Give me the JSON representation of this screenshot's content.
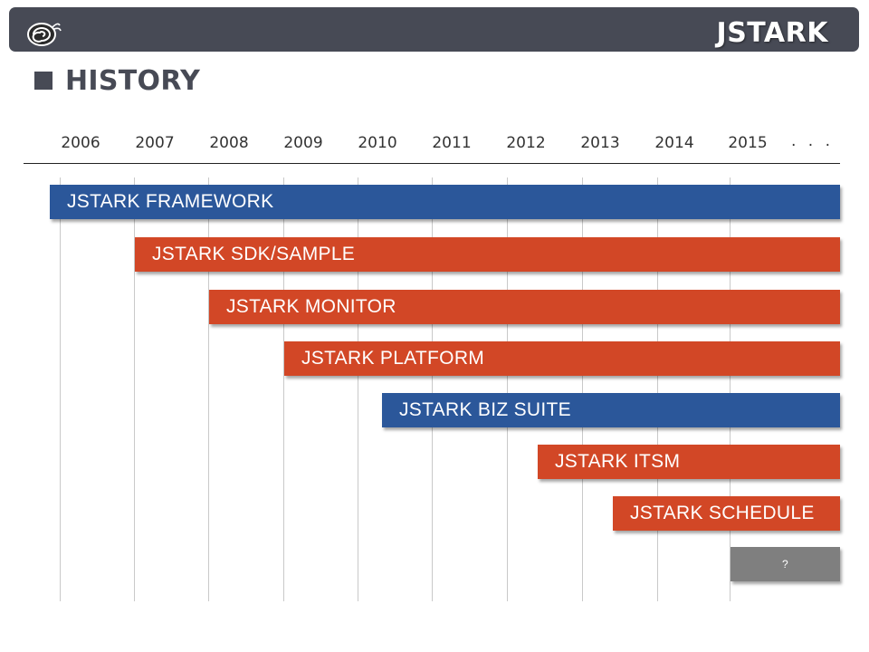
{
  "header": {
    "brand": "JSTARK",
    "logo_icon": "snail-icon"
  },
  "section": {
    "title": "HISTORY"
  },
  "timeline": {
    "years": [
      "2006",
      "2007",
      "2008",
      "2009",
      "2010",
      "2011",
      "2012",
      "2013",
      "2014",
      "2015"
    ],
    "ellipsis": ". . .",
    "bars": [
      {
        "label": "JSTARK FRAMEWORK",
        "start_year": 2006,
        "color": "blue"
      },
      {
        "label": "JSTARK SDK/SAMPLE",
        "start_year": 2007,
        "color": "orange"
      },
      {
        "label": "JSTARK MONITOR",
        "start_year": 2008,
        "color": "orange"
      },
      {
        "label": "JSTARK PLATFORM",
        "start_year": 2009,
        "color": "orange"
      },
      {
        "label": "JSTARK BIZ SUITE",
        "start_year": 2010,
        "color": "blue"
      },
      {
        "label": "JSTARK ITSM",
        "start_year": 2012,
        "color": "orange"
      },
      {
        "label": "JSTARK SCHEDULE",
        "start_year": 2013,
        "color": "orange"
      },
      {
        "label": "?",
        "start_year": 2015,
        "color": "gray"
      }
    ]
  },
  "colors": {
    "header_bg": "#474a55",
    "blue": "#2b579a",
    "orange": "#d24726",
    "gray": "#7f7f7f"
  }
}
